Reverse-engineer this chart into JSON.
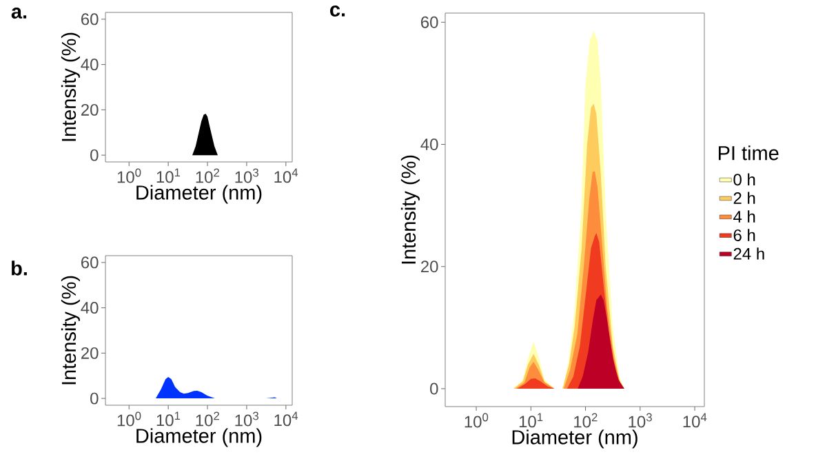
{
  "chart_data": [
    {
      "type": "area",
      "title": "a.",
      "xlabel": "Diameter (nm)",
      "ylabel": "Intensity (%)",
      "log": "x",
      "xlim": [
        0.25,
        14500
      ],
      "ylim": [
        -3,
        63
      ],
      "xticks": [
        {
          "value": 1,
          "label": "10$^{0}$"
        },
        {
          "value": 10,
          "label": "10$^{1}$"
        },
        {
          "value": 100,
          "label": "10$^{2}$"
        },
        {
          "value": 1000,
          "label": "10$^{3}$"
        },
        {
          "value": 10000,
          "label": "10$^{4}$"
        }
      ],
      "yticks": [
        0,
        20,
        40,
        60
      ],
      "series": [
        {
          "color": "#000000",
          "x": [
            41,
            50,
            60,
            70,
            80,
            90,
            100,
            120,
            150,
            183
          ],
          "values": [
            0,
            4,
            10,
            15,
            17.8,
            18.3,
            17,
            11,
            4,
            0
          ]
        }
      ]
    },
    {
      "type": "area",
      "title": "b.",
      "xlabel": "Diameter (nm)",
      "ylabel": "Intensity (%)",
      "log": "x",
      "xlim": [
        0.25,
        14500
      ],
      "ylim": [
        -3,
        63
      ],
      "xticks": [
        {
          "value": 1,
          "label": "10$^{0}$"
        },
        {
          "value": 10,
          "label": "10$^{1}$"
        },
        {
          "value": 100,
          "label": "10$^{2}$"
        },
        {
          "value": 1000,
          "label": "10$^{3}$"
        },
        {
          "value": 10000,
          "label": "10$^{4}$"
        }
      ],
      "yticks": [
        0,
        20,
        40,
        60
      ],
      "series": [
        {
          "color": "#0033ff",
          "x": [
            4.8,
            6.5,
            8.5,
            10,
            12,
            15,
            20,
            25,
            32,
            45,
            55,
            70,
            100,
            155,
            3100,
            4200,
            5200,
            5900
          ],
          "values": [
            0,
            4,
            8.5,
            9.5,
            8.5,
            5,
            2.8,
            2.1,
            2.4,
            3.3,
            3.4,
            2.8,
            1.2,
            0,
            0,
            0.3,
            0.5,
            0
          ]
        }
      ]
    },
    {
      "type": "area",
      "title": "c.",
      "xlabel": "Diameter (nm)",
      "ylabel": "Intensity (%)",
      "log": "x",
      "xlim": [
        0.27,
        15000
      ],
      "ylim": [
        -2.93,
        61.5
      ],
      "xticks": [
        {
          "value": 1,
          "label": "10$^{0}$"
        },
        {
          "value": 10,
          "label": "10$^{1}$"
        },
        {
          "value": 100,
          "label": "10$^{2}$"
        },
        {
          "value": 1000,
          "label": "10$^{3}$"
        },
        {
          "value": 10000,
          "label": "10$^{4}$"
        }
      ],
      "yticks": [
        0,
        20,
        40,
        60
      ],
      "legend": "right",
      "legend_title": "PI time",
      "series": [
        {
          "name": "0 h",
          "color": "#ffffb2",
          "x": [
            4.8,
            7.1,
            8.9,
            11.2,
            14.1,
            17.8,
            27,
            38,
            50,
            63,
            83,
            100,
            120,
            141,
            166,
            191,
            234,
            316,
            417,
            513
          ],
          "values": [
            0,
            1.5,
            5,
            7.7,
            5,
            1.5,
            0,
            0,
            5,
            13,
            29,
            50,
            57,
            58.6,
            57,
            50,
            29,
            10,
            2,
            0
          ]
        },
        {
          "name": "2 h",
          "color": "#fecc5c",
          "x": [
            4.8,
            7.1,
            8.9,
            11.2,
            14.1,
            17.8,
            27,
            38,
            50,
            63,
            85,
            107,
            126,
            141,
            158,
            191,
            234,
            316,
            417,
            513
          ],
          "values": [
            0,
            1.2,
            4,
            5.7,
            3.8,
            1.2,
            0,
            0,
            4,
            10,
            23,
            40,
            46,
            46.7,
            45,
            35,
            20,
            7,
            1.5,
            0
          ]
        },
        {
          "name": "4 h",
          "color": "#fd8d3c",
          "x": [
            5.2,
            7.6,
            9.5,
            11.2,
            13.5,
            17.8,
            27,
            40,
            52,
            71,
            93,
            117,
            135,
            148,
            166,
            200,
            251,
            331,
            427,
            513
          ],
          "values": [
            0,
            1,
            3.5,
            4.4,
            3.2,
            1,
            0,
            0,
            3,
            9,
            20,
            31,
            35.5,
            35.6,
            33,
            24,
            13,
            5,
            1,
            0
          ]
        },
        {
          "name": "6 h",
          "color": "#f03b20",
          "x": [
            5.6,
            7.9,
            10,
            12,
            15.1,
            20,
            27,
            46,
            60,
            79,
            100,
            126,
            148,
            158,
            178,
            214,
            269,
            355,
            447,
            513
          ],
          "values": [
            0,
            0.8,
            1.6,
            1.7,
            1.2,
            0.4,
            0,
            0,
            2,
            7,
            15,
            23,
            25,
            25.5,
            24,
            17,
            9,
            3,
            0.5,
            0
          ]
        },
        {
          "name": "24 h",
          "color": "#bd0026",
          "x": [
            72,
            89,
            112,
            135,
            158,
            191,
            214,
            251,
            316,
            398,
            513
          ],
          "values": [
            0,
            2,
            6,
            11,
            14.5,
            15.4,
            14.5,
            11,
            5,
            1.5,
            0
          ]
        }
      ]
    }
  ]
}
